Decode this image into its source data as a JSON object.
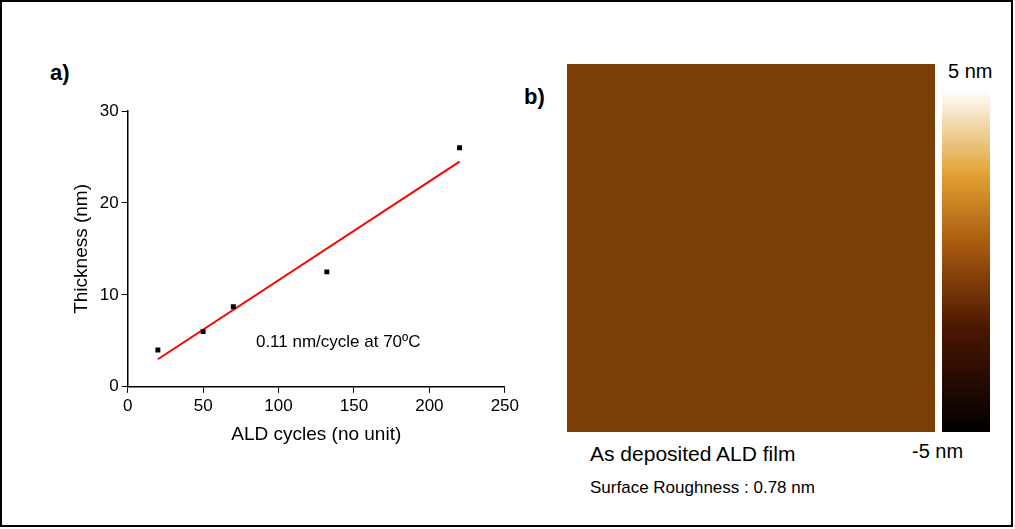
{
  "chart_data": {
    "type": "scatter",
    "panel": "a)",
    "x_label": "ALD cycles (no unit)",
    "y_label": "Thickness (nm)",
    "annotations": [
      "0.11 nm/cycle at 70ºC"
    ],
    "xlim": [
      0,
      250
    ],
    "xticks": [
      0,
      50,
      100,
      150,
      200,
      250
    ],
    "ylim": [
      0,
      30
    ],
    "yticks": [
      0,
      10,
      20,
      30
    ],
    "grid": false,
    "series": [
      {
        "type": "scatter",
        "marker": "square",
        "color": "#000000",
        "x": [
          20,
          50,
          70,
          132,
          220
        ],
        "values": [
          4.0,
          6.0,
          8.7,
          12.5,
          26.0
        ]
      },
      {
        "type": "line",
        "line_style": "solid",
        "color": "#ff0000",
        "x": [
          20,
          220
        ],
        "values": [
          3.0,
          24.5
        ]
      }
    ]
  },
  "image_panel": {
    "panel": "b)",
    "caption": "As deposited ALD film",
    "roughness_text": "Surface Roughness : 0.78 nm",
    "color_bar": {
      "range": [
        -5,
        5
      ],
      "ticks": [
        {
          "value": -5,
          "label": "-5 nm"
        },
        {
          "value": 5,
          "label": "5 nm"
        }
      ]
    }
  }
}
